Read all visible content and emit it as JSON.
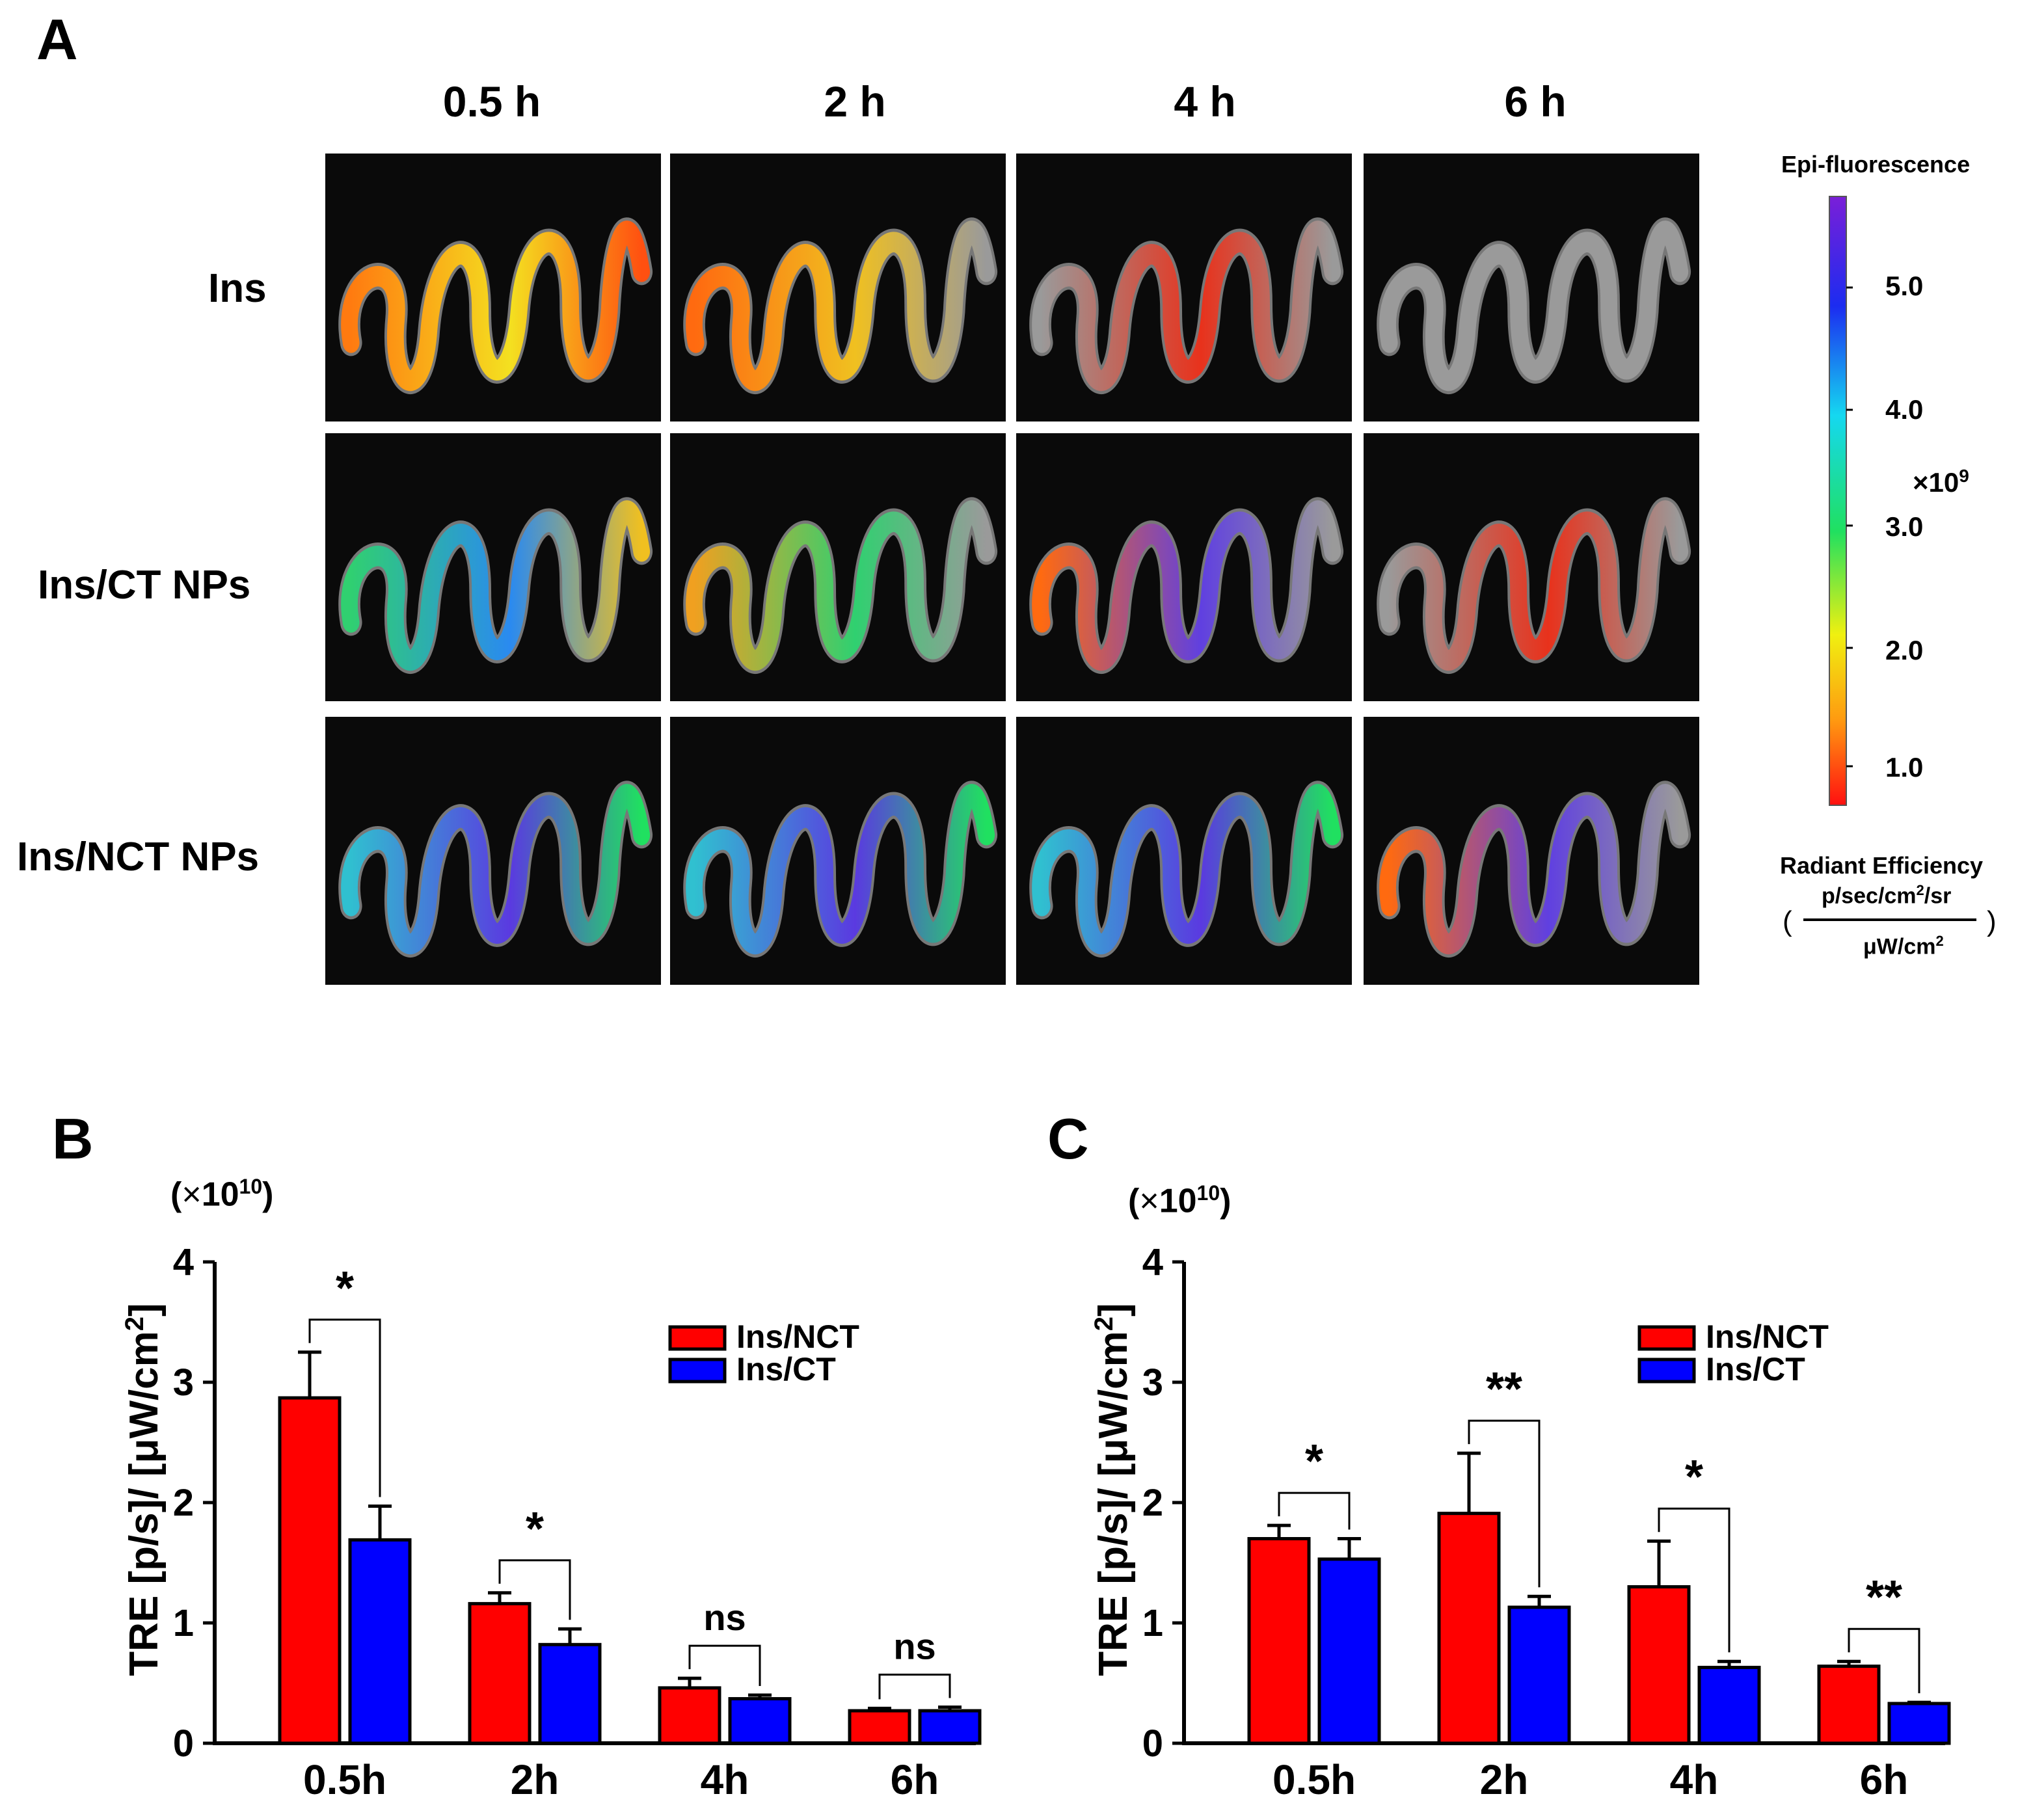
{
  "panel_a": {
    "letter": "A",
    "timepoints": [
      "0.5 h",
      "2 h",
      "4 h",
      "6 h"
    ],
    "rows": [
      {
        "label": "Ins",
        "signal": [
          "high-warm",
          "medium-warm",
          "low-warm",
          "none"
        ]
      },
      {
        "label": "Ins/CT NPs",
        "signal": [
          "high-cool",
          "high-mixed",
          "medium-mixed",
          "low-warm"
        ]
      },
      {
        "label": "Ins/NCT NPs",
        "signal": [
          "very-high-cool",
          "very-high-cool",
          "very-high-cool",
          "medium-mixed"
        ]
      }
    ],
    "colorbar": {
      "title": "Epi-fluorescence",
      "ticks": [
        "5.0",
        "4.0",
        "3.0",
        "2.0",
        "1.0"
      ],
      "multiplier": "×10",
      "multiplier_exp": "9",
      "unit_title": "Radiant Efficiency",
      "unit_num": "p/sec/cm",
      "unit_num_exp": "2",
      "unit_num_tail": "/sr",
      "unit_den": "μW/cm",
      "unit_den_exp": "2",
      "paren_open": "(",
      "paren_close": ")"
    }
  },
  "chart_data": [
    {
      "panel": "B",
      "type": "bar",
      "categories": [
        "0.5h",
        "2h",
        "4h",
        "6h"
      ],
      "series": [
        {
          "name": "Ins/NCT",
          "color": "#ff0000",
          "values": [
            2.87,
            1.16,
            0.46,
            0.27
          ],
          "errors": [
            0.38,
            0.09,
            0.08,
            0.02
          ]
        },
        {
          "name": "Ins/CT",
          "color": "#0000ff",
          "values": [
            1.69,
            0.82,
            0.37,
            0.27
          ],
          "errors": [
            0.28,
            0.13,
            0.03,
            0.03
          ]
        }
      ],
      "significance": [
        "*",
        "*",
        "ns",
        "ns"
      ],
      "ylabel": "TRE [p/s]/ [μW/cm",
      "ylabel_exp": "2",
      "ylabel_close": "]",
      "scale_prefix": "(",
      "scale_symbol": "×",
      "scale_base": "10",
      "scale_exp": "10",
      "scale_suffix": ")",
      "ylim": [
        0,
        4
      ],
      "yticks": [
        "0",
        "1",
        "2",
        "3",
        "4"
      ],
      "legend_position": "top-right"
    },
    {
      "panel": "C",
      "type": "bar",
      "categories": [
        "0.5h",
        "2h",
        "4h",
        "6h"
      ],
      "series": [
        {
          "name": "Ins/NCT",
          "color": "#ff0000",
          "values": [
            1.7,
            1.91,
            1.3,
            0.64
          ],
          "errors": [
            0.11,
            0.5,
            0.38,
            0.04
          ]
        },
        {
          "name": "Ins/CT",
          "color": "#0000ff",
          "values": [
            1.53,
            1.13,
            0.63,
            0.33
          ],
          "errors": [
            0.17,
            0.09,
            0.05,
            0.01
          ]
        }
      ],
      "significance": [
        "*",
        "**",
        "*",
        "**"
      ],
      "ylabel": "TRE [p/s]/ [μW/cm",
      "ylabel_exp": "2",
      "ylabel_close": "]",
      "scale_prefix": "(",
      "scale_symbol": "×",
      "scale_base": "10",
      "scale_exp": "10",
      "scale_suffix": ")",
      "ylim": [
        0,
        4
      ],
      "yticks": [
        "0",
        "1",
        "2",
        "3",
        "4"
      ],
      "legend_position": "top-right"
    }
  ]
}
